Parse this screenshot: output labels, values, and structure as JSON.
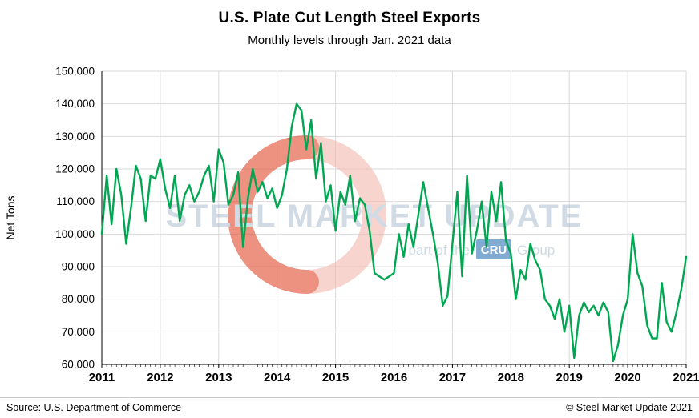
{
  "header": {
    "title": "U.S. Plate Cut Length Steel Exports",
    "subtitle": "Monthly levels through Jan. 2021 data"
  },
  "chart_data": {
    "type": "line",
    "title": "U.S. Plate Cut Length Steel Exports",
    "subtitle": "Monthly levels through Jan. 2021 data",
    "ylabel": "Net Tons",
    "ylim": [
      60000,
      150000
    ],
    "ytick_step": 10000,
    "ytick_labels": [
      "60,000",
      "70,000",
      "80,000",
      "90,000",
      "100,000",
      "110,000",
      "120,000",
      "130,000",
      "140,000",
      "150,000"
    ],
    "x_start": "2011-01",
    "x_end": "2021-01",
    "x_year_labels": [
      "2011",
      "2012",
      "2013",
      "2014",
      "2015",
      "2016",
      "2017",
      "2018",
      "2019",
      "2020",
      "2021"
    ],
    "grid": true,
    "legend": "none",
    "series": [
      {
        "name": "Net Tons",
        "color": "#00A651",
        "values": [
          100000,
          118000,
          103000,
          120000,
          112000,
          97000,
          108000,
          121000,
          117000,
          104000,
          118000,
          117000,
          123000,
          114000,
          108000,
          118000,
          104000,
          112000,
          115000,
          110000,
          113000,
          118000,
          121000,
          110000,
          126000,
          122000,
          109000,
          112000,
          119000,
          96000,
          111000,
          120000,
          113000,
          116000,
          111000,
          114000,
          108000,
          112000,
          120000,
          133000,
          140000,
          138000,
          126000,
          135000,
          117000,
          128000,
          110000,
          115000,
          101000,
          113000,
          109000,
          118000,
          104000,
          111000,
          109000,
          101000,
          88000,
          87000,
          86000,
          87000,
          88000,
          100000,
          93000,
          103000,
          96000,
          106000,
          116000,
          108000,
          100000,
          91000,
          78000,
          81000,
          97000,
          113000,
          87000,
          118000,
          94000,
          101000,
          110000,
          96000,
          113000,
          104000,
          116000,
          98000,
          94000,
          80000,
          89000,
          86000,
          97000,
          92000,
          89000,
          80000,
          78000,
          74000,
          80000,
          70000,
          78000,
          62000,
          75000,
          79000,
          76000,
          78000,
          75000,
          79000,
          76000,
          61000,
          66000,
          75000,
          80000,
          100000,
          88000,
          84000,
          72000,
          68000,
          68000,
          85000,
          73000,
          70000,
          76000,
          83000,
          93000
        ]
      }
    ]
  },
  "watermark": {
    "text": "STEEL MARKET UPDATE",
    "tagline_prefix": "part of the",
    "badge": "CRU",
    "tagline_suffix": "Group",
    "text_color": "#b3c4d4",
    "tagline_color": "#b0c2d2",
    "badge_color": "#2f74b5",
    "logo_ring_color": "#f2b9ae",
    "logo_swirl_color": "#e2492f"
  },
  "footer": {
    "source": "Source: U.S. Department of Commerce",
    "copyright": "© Steel Market Update 2021"
  }
}
